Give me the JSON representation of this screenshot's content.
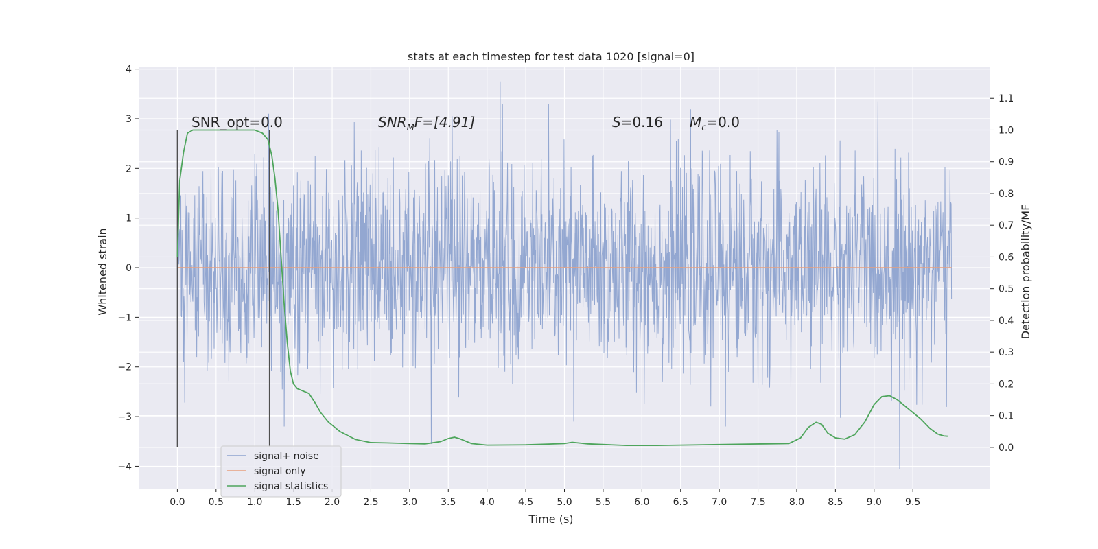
{
  "chart_data": {
    "type": "line",
    "title": "stats at each timestep for test data 1020 [signal=0]",
    "xlabel": "Time (s)",
    "ylabel": "Whitened strain",
    "ylabel_right": "Detection probability/MF",
    "xlim": [
      -0.5,
      10.5
    ],
    "ylim": [
      -4.45,
      4.05
    ],
    "ylim_right": [
      -0.13,
      1.2
    ],
    "x_ticks": [
      0.0,
      0.5,
      1.0,
      1.5,
      2.0,
      2.5,
      3.0,
      3.5,
      4.0,
      4.5,
      5.0,
      5.5,
      6.0,
      6.5,
      7.0,
      7.5,
      8.0,
      8.5,
      9.0,
      9.5
    ],
    "y_ticks": [
      -4,
      -3,
      -2,
      -1,
      0,
      1,
      2,
      3,
      4
    ],
    "y_right_ticks": [
      0.0,
      0.1,
      0.2,
      0.3,
      0.4,
      0.5,
      0.6,
      0.7,
      0.8,
      0.9,
      1.0,
      1.1
    ],
    "grid": true,
    "legend_position": "lower-left",
    "annotations": {
      "snr_opt": "SNR_opt=0.0",
      "snr_mf_base": "SNR",
      "snr_mf_sub": "M",
      "snr_mf_rest": "F=[4.91]",
      "s_text": "S",
      "s_value": "=0.16",
      "mc_base": "M",
      "mc_sub": "c",
      "mc_value": "=0.0"
    },
    "vlines": [
      0.0,
      1.19
    ],
    "series": [
      {
        "name": "signal+ noise",
        "color": "#8ea3cf",
        "time_range": [
          0.0,
          10.0
        ],
        "sample_rate_hz": 200,
        "distribution": "whitened gaussian noise",
        "sigma": 1.0,
        "observed_min": -4.05,
        "observed_max": 3.75,
        "notable_extrema": [
          {
            "x": 4.17,
            "y": 3.75
          },
          {
            "x": 4.2,
            "y": 3.3
          },
          {
            "x": 3.28,
            "y": -3.55
          },
          {
            "x": 9.33,
            "y": -4.05
          },
          {
            "x": 5.12,
            "y": -3.1
          },
          {
            "x": 7.08,
            "y": -3.2
          },
          {
            "x": 1.38,
            "y": -3.2
          },
          {
            "x": 3.55,
            "y": 3.05
          },
          {
            "x": 1.18,
            "y": 3.1
          }
        ]
      },
      {
        "name": "signal only",
        "color": "#e8a07e",
        "x": [
          0.0,
          10.0
        ],
        "y": [
          0.0,
          0.0
        ]
      },
      {
        "name": "signal statistics",
        "color": "#4ea55c",
        "axis": "right",
        "x": [
          0.0,
          0.03,
          0.08,
          0.13,
          0.2,
          0.3,
          0.5,
          0.75,
          1.0,
          1.1,
          1.17,
          1.22,
          1.26,
          1.3,
          1.34,
          1.38,
          1.42,
          1.46,
          1.5,
          1.55,
          1.6,
          1.7,
          1.78,
          1.85,
          1.95,
          2.1,
          2.3,
          2.5,
          2.7,
          3.0,
          3.2,
          3.4,
          3.5,
          3.58,
          3.65,
          3.8,
          4.0,
          4.5,
          5.0,
          5.1,
          5.3,
          5.8,
          6.2,
          6.5,
          7.0,
          7.3,
          7.6,
          7.9,
          8.05,
          8.15,
          8.25,
          8.32,
          8.4,
          8.5,
          8.62,
          8.75,
          8.88,
          9.0,
          9.1,
          9.2,
          9.3,
          9.45,
          9.6,
          9.72,
          9.82,
          9.9,
          9.95
        ],
        "y": [
          0.6,
          0.84,
          0.93,
          0.99,
          1.0,
          1.0,
          1.0,
          1.0,
          1.0,
          0.99,
          0.97,
          0.92,
          0.85,
          0.75,
          0.6,
          0.45,
          0.33,
          0.24,
          0.2,
          0.185,
          0.18,
          0.17,
          0.14,
          0.11,
          0.08,
          0.05,
          0.025,
          0.015,
          0.014,
          0.012,
          0.011,
          0.018,
          0.028,
          0.032,
          0.027,
          0.012,
          0.007,
          0.008,
          0.012,
          0.016,
          0.011,
          0.006,
          0.006,
          0.007,
          0.009,
          0.01,
          0.011,
          0.012,
          0.03,
          0.063,
          0.079,
          0.073,
          0.045,
          0.03,
          0.026,
          0.04,
          0.08,
          0.135,
          0.16,
          0.163,
          0.15,
          0.12,
          0.09,
          0.06,
          0.042,
          0.036,
          0.035
        ]
      }
    ]
  }
}
